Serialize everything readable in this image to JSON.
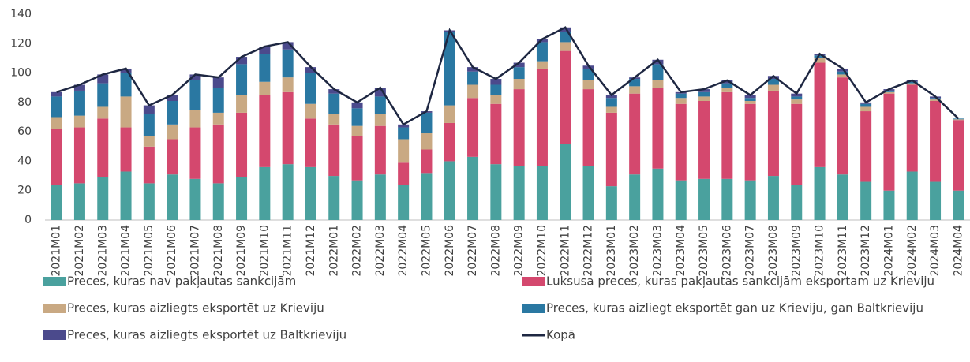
{
  "chart_data": {
    "type": "bar",
    "stacked": true,
    "categories": [
      "2021M01",
      "2021M02",
      "2021M03",
      "2021M04",
      "2021M05",
      "2021M06",
      "2021M07",
      "2021M08",
      "2021M09",
      "2021M10",
      "2021M11",
      "2021M12",
      "2022M01",
      "2022M02",
      "2022M03",
      "2022M04",
      "2022M05",
      "2022M06",
      "2022M07",
      "2022M08",
      "2022M09",
      "2022M10",
      "2022M11",
      "2022M12",
      "2023M01",
      "2023M02",
      "2023M03",
      "2023M04",
      "2023M05",
      "2023M06",
      "2023M07",
      "2023M08",
      "2023M09",
      "2023M10",
      "2023M11",
      "2023M12",
      "2024M01",
      "2024M02",
      "2024M03",
      "2024M04"
    ],
    "series": [
      {
        "name": "Preces, kuras nav pakļautas sankcijām",
        "color": "#4aa19e",
        "values": [
          24,
          25,
          29,
          33,
          25,
          31,
          28,
          25,
          29,
          36,
          38,
          36,
          30,
          27,
          31,
          24,
          32,
          40,
          43,
          38,
          37,
          37,
          52,
          37,
          23,
          31,
          35,
          27,
          28,
          28,
          27,
          30,
          24,
          36,
          31,
          26,
          20,
          33,
          26,
          20
        ]
      },
      {
        "name": "Luksusa preces, kuras pakļautas sankcijām eksportam uz Krieviju",
        "color": "#d4486e",
        "values": [
          38,
          38,
          40,
          30,
          25,
          24,
          35,
          40,
          44,
          49,
          49,
          33,
          35,
          30,
          33,
          15,
          16,
          26,
          40,
          41,
          52,
          66,
          63,
          52,
          50,
          55,
          55,
          52,
          53,
          59,
          52,
          58,
          55,
          71,
          66,
          48,
          66,
          59,
          55,
          48
        ]
      },
      {
        "name": "Preces, kuras aizliegts eksportēt uz Krieviju",
        "color": "#c9a983",
        "values": [
          8,
          8,
          8,
          21,
          7,
          10,
          12,
          8,
          12,
          9,
          10,
          10,
          7,
          7,
          8,
          16,
          11,
          12,
          9,
          6,
          7,
          5,
          6,
          6,
          4,
          5,
          5,
          4,
          3,
          3,
          2,
          4,
          3,
          3,
          2,
          3,
          1,
          1,
          1,
          0.5
        ]
      },
      {
        "name": "Preces, kuras aizliegt eksportēt gan uz Krieviju, gan Baltkrieviju",
        "color": "#2a78a2",
        "values": [
          14,
          17,
          16,
          16,
          15,
          16,
          20,
          17,
          21,
          19,
          19,
          21,
          14,
          12,
          12,
          8,
          14,
          50,
          9,
          7,
          8,
          13,
          7,
          8,
          6,
          5,
          11,
          3,
          3,
          3,
          2,
          4,
          2,
          2,
          2,
          2,
          1,
          1,
          1,
          0.5
        ]
      },
      {
        "name": "Preces, kuras aizliegts eksportēt uz Baltkrieviju",
        "color": "#4b4a8c",
        "values": [
          3,
          4,
          6,
          3,
          6,
          4,
          4,
          7,
          5,
          5,
          5,
          4,
          3,
          4,
          6,
          2,
          1,
          1,
          3,
          4,
          3,
          2,
          3,
          2,
          2,
          1,
          3,
          1,
          2,
          2,
          2,
          2,
          2,
          1,
          2,
          1,
          1,
          1,
          1,
          0
        ]
      },
      {
        "name": "Kopā",
        "type": "line",
        "color": "#1e2742",
        "values": [
          87,
          92,
          99,
          103,
          78,
          85,
          99,
          97,
          111,
          118,
          121,
          104,
          89,
          80,
          90,
          65,
          74,
          129,
          104,
          96,
          107,
          123,
          131,
          105,
          85,
          97,
          109,
          87,
          89,
          95,
          85,
          98,
          86,
          113,
          103,
          80,
          89,
          95,
          84,
          69
        ]
      }
    ],
    "ylim": [
      0,
      140
    ],
    "yticks": [
      0,
      20,
      40,
      60,
      80,
      100,
      120,
      140
    ]
  }
}
